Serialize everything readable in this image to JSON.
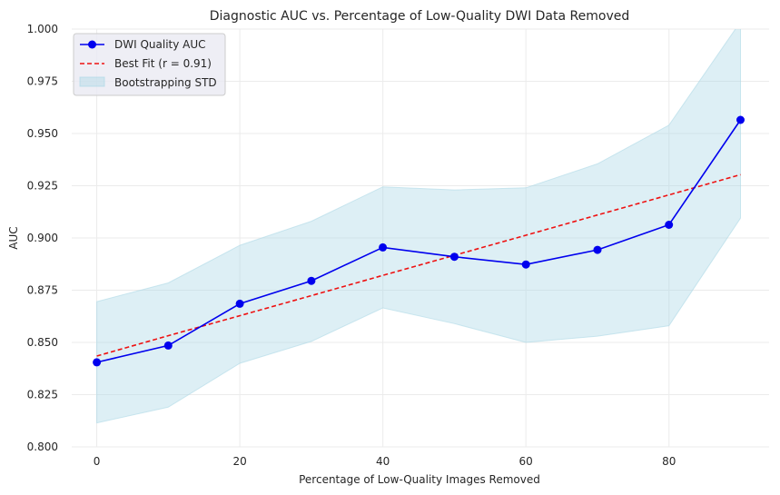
{
  "chart_data": {
    "type": "line",
    "title": "Diagnostic AUC vs. Percentage of Low-Quality DWI Data Removed",
    "xlabel": "Percentage of Low-Quality Images Removed",
    "ylabel": "AUC",
    "xlim": [
      -3.5,
      94
    ],
    "ylim": [
      0.8,
      1.0
    ],
    "xticks": [
      0,
      20,
      40,
      60,
      80
    ],
    "yticks": [
      0.8,
      0.825,
      0.85,
      0.875,
      0.9,
      0.925,
      0.95,
      0.975,
      1.0
    ],
    "xtick_labels": [
      "0",
      "20",
      "40",
      "60",
      "80"
    ],
    "ytick_labels": [
      "0.800",
      "0.825",
      "0.850",
      "0.875",
      "0.900",
      "0.925",
      "0.950",
      "0.975",
      "1.000"
    ],
    "grid": true,
    "legend_position": "top-left",
    "x": [
      0,
      10,
      20,
      30,
      40,
      50,
      60,
      70,
      80,
      90
    ],
    "series": [
      {
        "name": "DWI Quality AUC",
        "kind": "line-marker",
        "color": "#0000ee",
        "values": [
          0.8405,
          0.8485,
          0.8685,
          0.8795,
          0.8955,
          0.891,
          0.8873,
          0.8943,
          0.9063,
          0.9565
        ]
      },
      {
        "name": "Best Fit (r = 0.91)",
        "kind": "dashed-line",
        "color": "#ee1111",
        "values": [
          0.8435,
          0.8532,
          0.8628,
          0.8724,
          0.8821,
          0.8917,
          0.9013,
          0.911,
          0.9206,
          0.9303
        ]
      },
      {
        "name": "Bootstrapping STD",
        "kind": "band",
        "color": "#add8e6",
        "lower": [
          0.8115,
          0.819,
          0.84,
          0.8505,
          0.8665,
          0.859,
          0.85,
          0.853,
          0.858,
          0.9095
        ],
        "upper": [
          0.8695,
          0.8785,
          0.8965,
          0.908,
          0.9245,
          0.923,
          0.924,
          0.9355,
          0.954,
          1.0035
        ]
      }
    ]
  }
}
